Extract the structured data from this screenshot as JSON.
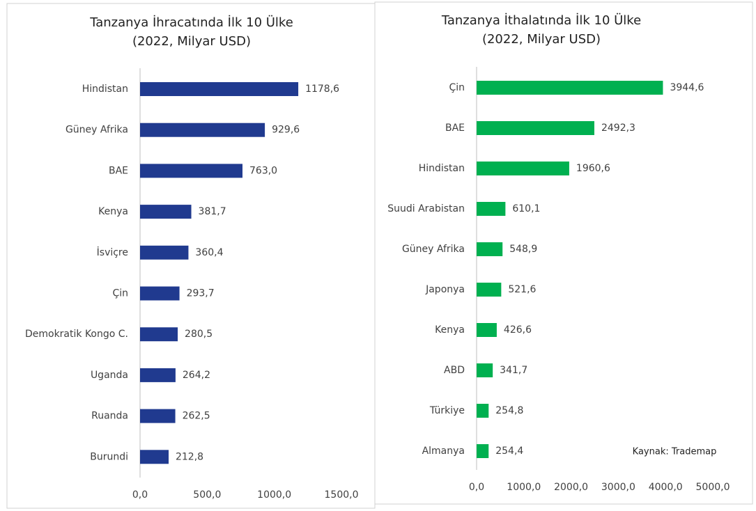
{
  "chart_data": [
    {
      "type": "bar",
      "orientation": "horizontal",
      "title": "Tanzanya İhracatında İlk 10 Ülke",
      "subtitle": "(2022, Milyar USD)",
      "categories": [
        "Hindistan",
        "Güney Afrika",
        "BAE",
        "Kenya",
        "İsviçre",
        "Çin",
        "Demokratik Kongo C.",
        "Uganda",
        "Ruanda",
        "Burundi"
      ],
      "values": [
        1178.6,
        929.6,
        763.0,
        381.7,
        360.4,
        293.7,
        280.5,
        264.2,
        262.5,
        212.8
      ],
      "value_labels": [
        "1178,6",
        "929,6",
        "763,0",
        "381,7",
        "360,4",
        "293,7",
        "280,5",
        "264,2",
        "262,5",
        "212,8"
      ],
      "color": "#203a8f",
      "xlim": [
        0,
        1500
      ],
      "xticks": [
        {
          "value": 0,
          "label": "0,0"
        },
        {
          "value": 500,
          "label": "500,0"
        },
        {
          "value": 1000,
          "label": "1000,0"
        },
        {
          "value": 1500,
          "label": "1500,0"
        }
      ]
    },
    {
      "type": "bar",
      "orientation": "horizontal",
      "title": "Tanzanya İthalatında İlk 10 Ülke",
      "subtitle": "(2022, Milyar USD)",
      "categories": [
        "Çin",
        "BAE",
        "Hindistan",
        "Suudi Arabistan",
        "Güney Afrika",
        "Japonya",
        "Kenya",
        "ABD",
        "Türkiye",
        "Almanya"
      ],
      "values": [
        3944.6,
        2492.3,
        1960.6,
        610.1,
        548.9,
        521.6,
        426.6,
        341.7,
        254.8,
        254.4
      ],
      "value_labels": [
        "3944,6",
        "2492,3",
        "1960,6",
        "610,1",
        "548,9",
        "521,6",
        "426,6",
        "341,7",
        "254,8",
        "254,4"
      ],
      "color": "#00b050",
      "xlim": [
        0,
        5000
      ],
      "xticks": [
        {
          "value": 0,
          "label": "0,0"
        },
        {
          "value": 1000,
          "label": "1000,0"
        },
        {
          "value": 2000,
          "label": "2000,0"
        },
        {
          "value": 3000,
          "label": "3000,0"
        },
        {
          "value": 4000,
          "label": "4000,0"
        },
        {
          "value": 5000,
          "label": "5000,0"
        }
      ],
      "source": "Kaynak: Trademap"
    }
  ]
}
